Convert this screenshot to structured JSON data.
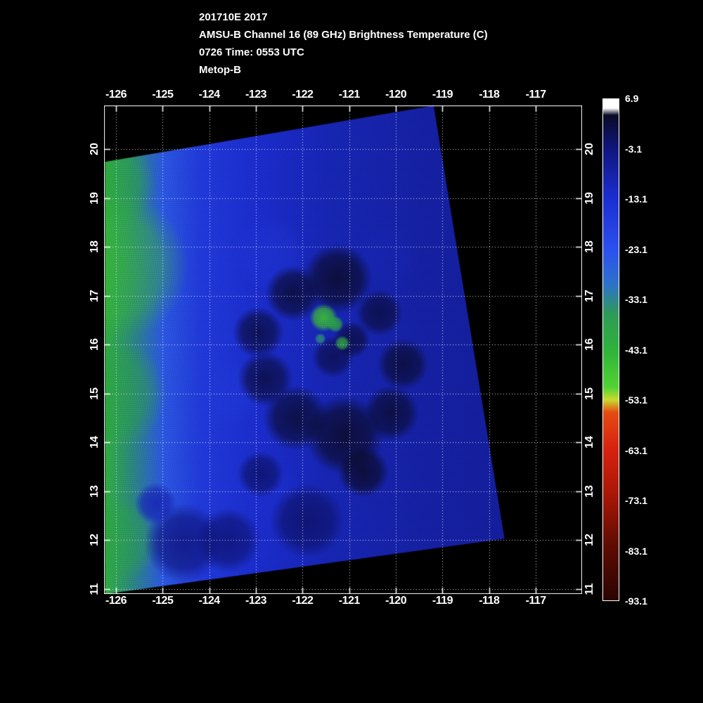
{
  "title_block": {
    "line1": "201710E 2017",
    "line2": "AMSU-B Channel 16 (89 GHz) Brightness Temperature (C)",
    "line3": "0726 Time: 0553 UTC",
    "line4": "Metop-B"
  },
  "axes": {
    "x_tick_labels": [
      "-126",
      "-125",
      "-124",
      "-123",
      "-122",
      "-121",
      "-120",
      "-119",
      "-118",
      "-117"
    ],
    "y_tick_labels": [
      "20",
      "19",
      "18",
      "17",
      "16",
      "15",
      "14",
      "13",
      "12",
      "11"
    ]
  },
  "colorbar": {
    "tick_labels": [
      "6.9",
      "-3.1",
      "-13.1",
      "-23.1",
      "-33.1",
      "-43.1",
      "-53.1",
      "-63.1",
      "-73.1",
      "-83.1",
      "-93.1"
    ],
    "value_max": 6.9,
    "value_min": -93.1,
    "stops": [
      {
        "frac": 0.0,
        "color": "#ffffff"
      },
      {
        "frac": 0.018,
        "color": "#ffffff"
      },
      {
        "frac": 0.032,
        "color": "#0b0b26"
      },
      {
        "frac": 0.1,
        "color": "#10167e"
      },
      {
        "frac": 0.2,
        "color": "#1c2ed2"
      },
      {
        "frac": 0.3,
        "color": "#2c50f0"
      },
      {
        "frac": 0.37,
        "color": "#2e72c8"
      },
      {
        "frac": 0.43,
        "color": "#2d9b55"
      },
      {
        "frac": 0.5,
        "color": "#2fb23c"
      },
      {
        "frac": 0.575,
        "color": "#52d334"
      },
      {
        "frac": 0.6,
        "color": "#c8da2e"
      },
      {
        "frac": 0.625,
        "color": "#e64b12"
      },
      {
        "frac": 0.7,
        "color": "#d62110"
      },
      {
        "frac": 0.79,
        "color": "#a81706"
      },
      {
        "frac": 0.89,
        "color": "#5f0c03"
      },
      {
        "frac": 1.0,
        "color": "#2b0401"
      }
    ]
  },
  "chart_data": {
    "type": "heatmap",
    "title": "AMSU-B Channel 16 (89 GHz) Brightness Temperature (C)",
    "storm": "201710E 2017",
    "time_label": "0726 Time: 0553 UTC",
    "platform": "Metop-B",
    "units": "C",
    "x_axis": {
      "ticks": [
        -126,
        -125,
        -124,
        -123,
        -122,
        -121,
        -120,
        -119,
        -118,
        -117
      ],
      "range": [
        -126.26,
        -116.05
      ]
    },
    "y_axis": {
      "ticks": [
        20,
        19,
        18,
        17,
        16,
        15,
        14,
        13,
        12,
        11
      ],
      "range": [
        10.9,
        21.0
      ]
    },
    "colorbar_range": [
      6.9,
      -93.1
    ],
    "swath_polygon_lonlat": [
      [
        -126.23,
        19.74
      ],
      [
        -119.19,
        20.89
      ],
      [
        -117.67,
        12.03
      ],
      [
        -126.23,
        10.9
      ]
    ],
    "base_gradient_lon_tb": [
      [
        -126.3,
        -44
      ],
      [
        -125.7,
        -34
      ],
      [
        -125.0,
        -25
      ],
      [
        -124.2,
        -17
      ],
      [
        -123.0,
        -13
      ],
      [
        -121.5,
        -10
      ],
      [
        -119.5,
        -8
      ],
      [
        -117.5,
        -7
      ]
    ],
    "cold_patches": [
      [
        -126.05,
        17.6,
        1.6,
        -46
      ],
      [
        -126.1,
        15.0,
        1.2,
        -40
      ],
      [
        -125.95,
        12.0,
        0.9,
        -40
      ],
      [
        -126.15,
        19.3,
        1.0,
        -42
      ]
    ],
    "bright_blue_patches": [
      [
        -122.7,
        17.85,
        0.8,
        -16
      ],
      [
        -123.6,
        15.0,
        0.7,
        -17
      ],
      [
        -122.7,
        12.95,
        0.7,
        -14
      ],
      [
        -120.2,
        17.8,
        0.7,
        -10
      ]
    ],
    "warm_dark_features": [
      [
        -121.25,
        17.35,
        0.75,
        3
      ],
      [
        -122.2,
        17.05,
        0.6,
        2
      ],
      [
        -122.95,
        16.25,
        0.55,
        1
      ],
      [
        -122.8,
        15.3,
        0.6,
        1
      ],
      [
        -122.15,
        14.5,
        0.7,
        2
      ],
      [
        -121.1,
        14.15,
        0.85,
        3
      ],
      [
        -120.1,
        14.6,
        0.6,
        2
      ],
      [
        -119.85,
        15.6,
        0.55,
        2
      ],
      [
        -120.35,
        16.65,
        0.5,
        1
      ],
      [
        -121.35,
        15.75,
        0.45,
        0
      ],
      [
        -120.95,
        16.1,
        0.4,
        1
      ],
      [
        -120.7,
        13.4,
        0.55,
        3
      ],
      [
        -122.9,
        13.35,
        0.5,
        -2
      ],
      [
        -124.55,
        11.95,
        0.85,
        -4
      ],
      [
        -123.6,
        12.0,
        0.7,
        -3
      ],
      [
        -125.15,
        12.75,
        0.45,
        -10
      ],
      [
        -121.9,
        12.4,
        0.8,
        -2
      ]
    ],
    "cold_convection_cores": [
      [
        -121.55,
        16.55,
        0.3,
        -46
      ],
      [
        -121.3,
        16.42,
        0.18,
        -40
      ],
      [
        -121.15,
        16.03,
        0.16,
        -38
      ],
      [
        -121.62,
        16.12,
        0.12,
        -34
      ]
    ],
    "feature_format": "[lon_deg, lat_deg, radius_deg, brightness_temp_C]"
  }
}
